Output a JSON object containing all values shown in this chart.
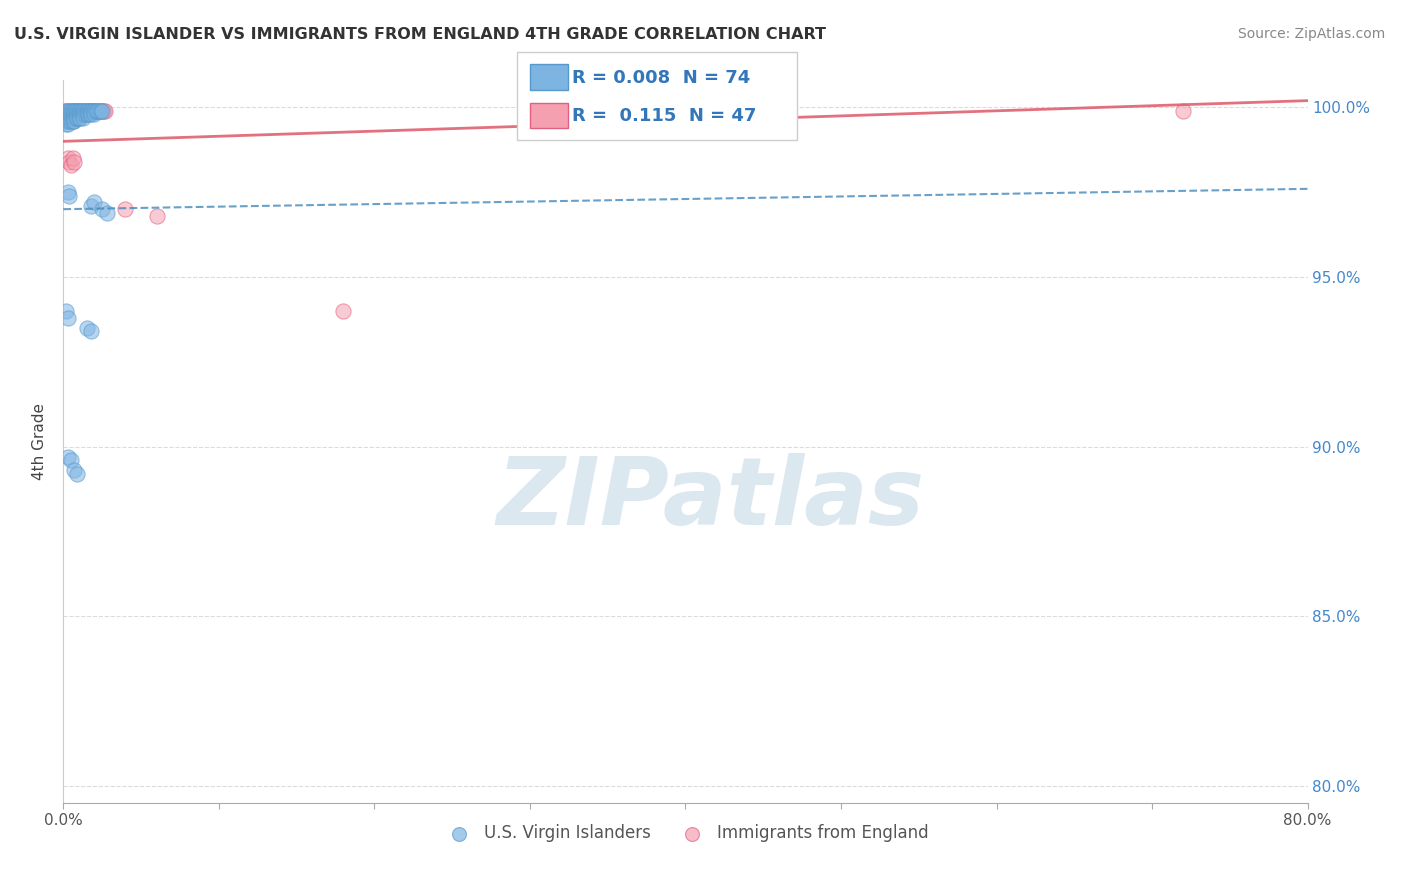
{
  "title": "U.S. VIRGIN ISLANDER VS IMMIGRANTS FROM ENGLAND 4TH GRADE CORRELATION CHART",
  "source": "Source: ZipAtlas.com",
  "ylabel": "4th Grade",
  "y_tick_labels": [
    "80.0%",
    "85.0%",
    "90.0%",
    "95.0%",
    "100.0%"
  ],
  "y_tick_values": [
    0.8,
    0.85,
    0.9,
    0.95,
    1.0
  ],
  "xlim": [
    0.0,
    0.8
  ],
  "ylim": [
    0.795,
    1.008
  ],
  "legend_blue_R": "0.008",
  "legend_blue_N": "74",
  "legend_pink_R": "0.115",
  "legend_pink_N": "47",
  "legend_label_blue": "U.S. Virgin Islanders",
  "legend_label_pink": "Immigrants from England",
  "blue_color": "#7EB4E2",
  "pink_color": "#F4A0B0",
  "blue_edge_color": "#5599CC",
  "pink_edge_color": "#E06080",
  "blue_line_color": "#4488BB",
  "pink_line_color": "#E06070",
  "watermark_text": "ZIPatlas",
  "watermark_color": "#dce8f0",
  "blue_scatter_x": [
    0.001,
    0.001,
    0.002,
    0.002,
    0.002,
    0.003,
    0.003,
    0.003,
    0.003,
    0.004,
    0.004,
    0.004,
    0.004,
    0.005,
    0.005,
    0.005,
    0.005,
    0.006,
    0.006,
    0.006,
    0.006,
    0.007,
    0.007,
    0.007,
    0.007,
    0.008,
    0.008,
    0.008,
    0.009,
    0.009,
    0.009,
    0.01,
    0.01,
    0.01,
    0.011,
    0.011,
    0.011,
    0.012,
    0.012,
    0.013,
    0.013,
    0.013,
    0.014,
    0.014,
    0.015,
    0.015,
    0.016,
    0.016,
    0.017,
    0.017,
    0.018,
    0.018,
    0.019,
    0.02,
    0.02,
    0.021,
    0.022,
    0.023,
    0.024,
    0.025,
    0.003,
    0.004,
    0.018,
    0.02,
    0.025,
    0.028,
    0.002,
    0.003,
    0.015,
    0.018,
    0.003,
    0.005,
    0.007,
    0.009
  ],
  "blue_scatter_y": [
    0.998,
    0.996,
    0.999,
    0.997,
    0.995,
    0.998,
    0.997,
    0.996,
    0.995,
    0.999,
    0.998,
    0.997,
    0.996,
    0.999,
    0.998,
    0.997,
    0.996,
    0.999,
    0.998,
    0.997,
    0.996,
    0.999,
    0.998,
    0.997,
    0.996,
    0.999,
    0.998,
    0.997,
    0.999,
    0.998,
    0.997,
    0.999,
    0.998,
    0.997,
    0.999,
    0.998,
    0.997,
    0.999,
    0.998,
    0.999,
    0.998,
    0.997,
    0.999,
    0.998,
    0.999,
    0.998,
    0.999,
    0.998,
    0.999,
    0.998,
    0.999,
    0.998,
    0.999,
    0.999,
    0.998,
    0.999,
    0.999,
    0.999,
    0.999,
    0.999,
    0.975,
    0.974,
    0.971,
    0.972,
    0.97,
    0.969,
    0.94,
    0.938,
    0.935,
    0.934,
    0.897,
    0.896,
    0.893,
    0.892
  ],
  "pink_scatter_x": [
    0.001,
    0.001,
    0.002,
    0.002,
    0.003,
    0.003,
    0.003,
    0.004,
    0.004,
    0.005,
    0.005,
    0.006,
    0.006,
    0.007,
    0.007,
    0.008,
    0.009,
    0.01,
    0.011,
    0.012,
    0.013,
    0.014,
    0.015,
    0.016,
    0.017,
    0.018,
    0.019,
    0.02,
    0.021,
    0.022,
    0.023,
    0.024,
    0.025,
    0.026,
    0.027,
    0.003,
    0.004,
    0.005,
    0.006,
    0.007,
    0.04,
    0.06,
    0.18,
    0.72,
    0.002,
    0.004,
    0.006
  ],
  "pink_scatter_y": [
    0.999,
    0.998,
    0.999,
    0.998,
    0.999,
    0.998,
    0.997,
    0.999,
    0.998,
    0.999,
    0.998,
    0.999,
    0.998,
    0.999,
    0.998,
    0.999,
    0.999,
    0.999,
    0.999,
    0.999,
    0.999,
    0.999,
    0.999,
    0.999,
    0.999,
    0.999,
    0.999,
    0.999,
    0.999,
    0.999,
    0.999,
    0.999,
    0.999,
    0.999,
    0.999,
    0.985,
    0.984,
    0.983,
    0.985,
    0.984,
    0.97,
    0.968,
    0.94,
    0.999,
    0.998,
    0.997,
    0.996
  ],
  "blue_trendline_x": [
    0.0,
    0.8
  ],
  "blue_trendline_y": [
    0.97,
    0.976
  ],
  "pink_trendline_x": [
    0.0,
    0.8
  ],
  "pink_trendline_y": [
    0.99,
    1.002
  ]
}
